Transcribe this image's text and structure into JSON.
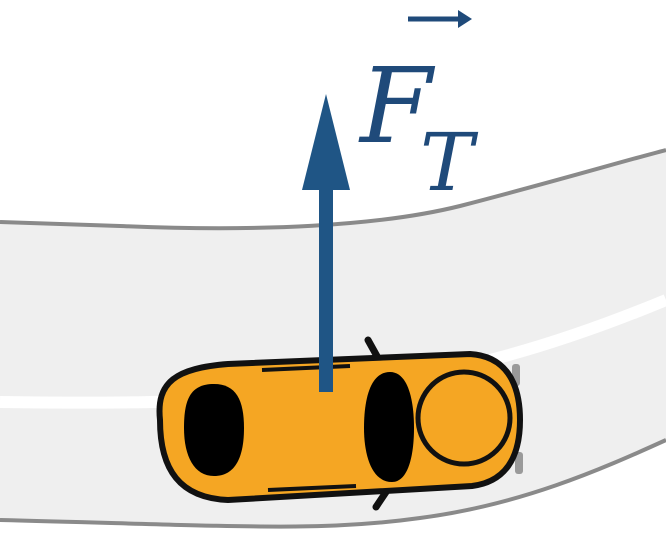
{
  "diagram": {
    "force_label": {
      "symbol": "F",
      "subscript": "T"
    },
    "colors": {
      "background": "#ffffff",
      "road_fill": "#efefef",
      "road_edge": "#8a8a8a",
      "lane_marking": "#ffffff",
      "car_body": "#f5a623",
      "car_outline": "#111111",
      "car_windows": "#000000",
      "mirror": "#9a9a9a",
      "force_arrow": "#1f5585",
      "label": "#1f4a7a"
    },
    "icons": {
      "car": "car-top-view-icon",
      "force_arrow": "force-arrow-icon"
    }
  }
}
